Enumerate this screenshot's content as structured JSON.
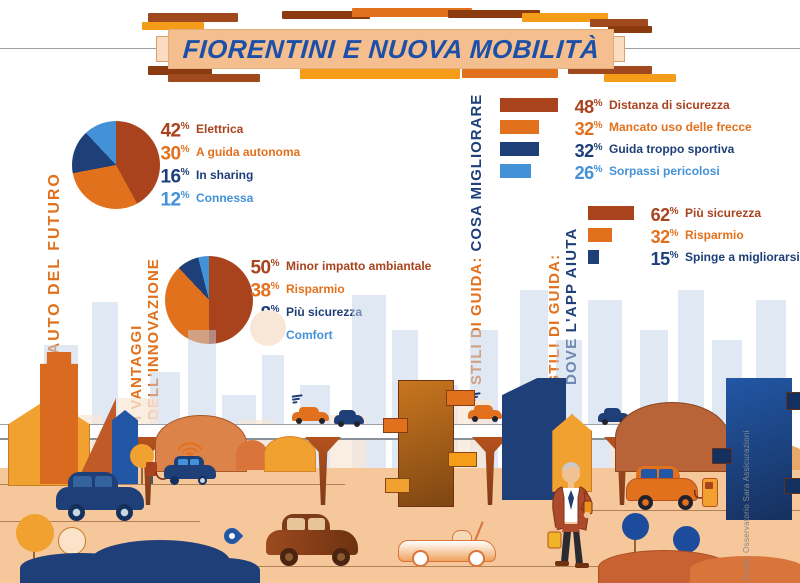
{
  "title": "FIORENTINI E NUOVA MOBILITÀ",
  "source": "Fonte: Osservatorio Sara Assicurazioni",
  "palette": {
    "rust": "#A9431E",
    "orange": "#E2711D",
    "amber": "#F59D18",
    "darkblue": "#1E3F77",
    "lightblue": "#4392D7",
    "titleblue": "#1C50A8",
    "banner": "#F5BE8F",
    "ground": "#F5C79B",
    "skyline": "#BFD2E8",
    "palepeach": "#F8E7D7",
    "brown": "#8C3A10"
  },
  "section_labels": [
    {
      "lines": [
        [
          {
            "t": "L'AUTO DEL FUTURO",
            "c": "orange"
          }
        ]
      ]
    },
    {
      "lines": [
        [
          {
            "t": "I VANTAGGI",
            "c": "orange"
          }
        ],
        [
          {
            "t": "DELL'INNOVAZIONE",
            "c": "orange"
          }
        ]
      ]
    },
    {
      "lines": [
        [
          {
            "t": "STILI DI GUIDA: ",
            "c": "orange"
          },
          {
            "t": "COSA MIGLIORARE",
            "c": "blue"
          }
        ]
      ]
    },
    {
      "lines": [
        [
          {
            "t": "STILI DI GUIDA:",
            "c": "orange"
          }
        ],
        [
          {
            "t": "DOVE L'APP AIUTA",
            "c": "blue"
          }
        ]
      ]
    }
  ],
  "chart_data": [
    {
      "type": "pie",
      "title": "L'AUTO DEL FUTURO",
      "unit": "%",
      "start_angle_deg": 0,
      "direction": "clockwise",
      "legend_position": "right",
      "slices": [
        {
          "label": "Elettrica",
          "value": 42,
          "color": "#A9431E"
        },
        {
          "label": "A guida autonoma",
          "value": 30,
          "color": "#E2711D"
        },
        {
          "label": "In sharing",
          "value": 16,
          "color": "#1E3F77"
        },
        {
          "label": "Connessa",
          "value": 12,
          "color": "#4392D7"
        }
      ]
    },
    {
      "type": "pie",
      "title": "I VANTAGGI DELL'INNOVAZIONE",
      "unit": "%",
      "start_angle_deg": 0,
      "direction": "clockwise",
      "legend_position": "right",
      "slices": [
        {
          "label": "Minor impatto ambiantale",
          "value": 50,
          "color": "#A9431E"
        },
        {
          "label": "Risparmio",
          "value": 38,
          "color": "#E2711D"
        },
        {
          "label": "Più sicurezza",
          "value": 8,
          "color": "#1E3F77"
        },
        {
          "label": "Comfort",
          "value": 4,
          "color": "#4392D7"
        }
      ]
    },
    {
      "type": "bar",
      "title": "STILI DI GUIDA: COSA MIGLIORARE",
      "unit": "%",
      "orientation": "horizontal",
      "xlim": [
        0,
        100
      ],
      "legend_position": "right",
      "bars": [
        {
          "label": "Distanza di sicurezza",
          "value": 48,
          "color": "#A9431E"
        },
        {
          "label": "Mancato uso delle frecce",
          "value": 32,
          "color": "#E2711D"
        },
        {
          "label": "Guida troppo sportiva",
          "value": 32,
          "color": "#1E3F77"
        },
        {
          "label": "Sorpassi pericolosi",
          "value": 26,
          "color": "#4392D7"
        }
      ]
    },
    {
      "type": "bar",
      "title": "STILI DI GUIDA: DOVE L'APP AIUTA",
      "unit": "%",
      "orientation": "horizontal",
      "xlim": [
        0,
        100
      ],
      "legend_position": "right",
      "bars": [
        {
          "label": "Più sicurezza",
          "value": 62,
          "color": "#A9431E"
        },
        {
          "label": "Risparmio",
          "value": 32,
          "color": "#E2711D"
        },
        {
          "label": "Spinge a migliorarsi",
          "value": 15,
          "color": "#1E3F77"
        }
      ]
    }
  ]
}
